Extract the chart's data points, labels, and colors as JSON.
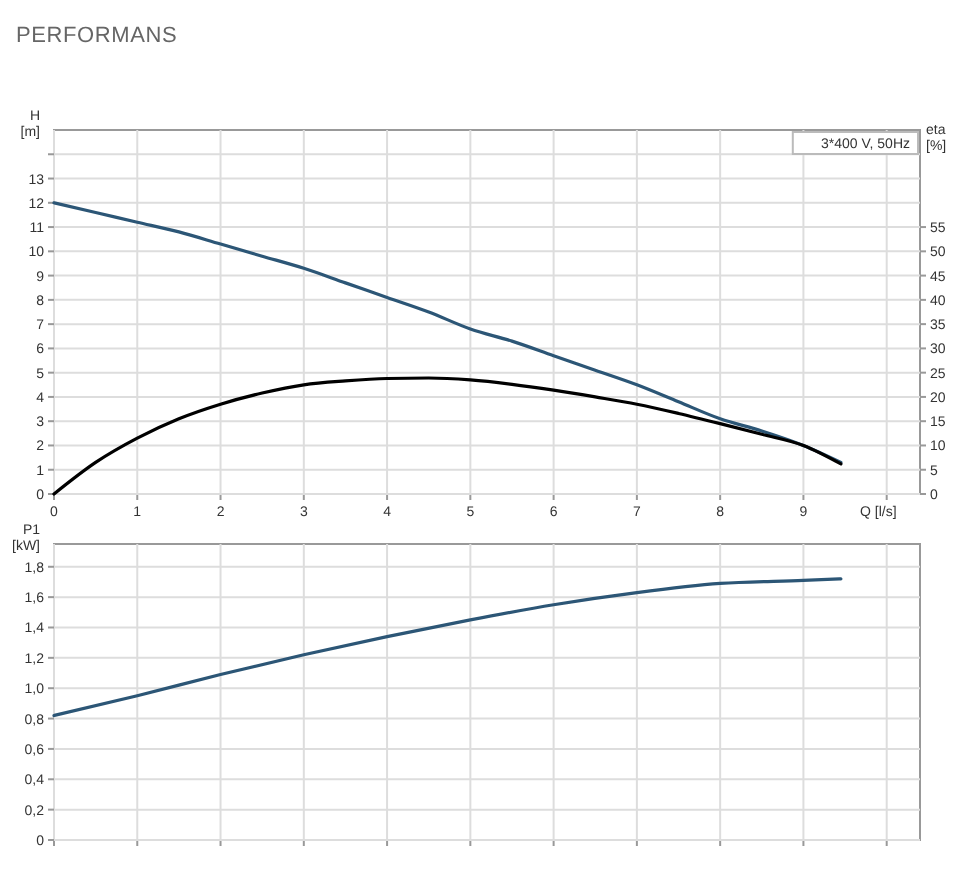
{
  "chart_data": [
    {
      "type": "line",
      "title": "PERFORMANS",
      "xlabel": "Q [l/s]",
      "ylabel": "H [m]",
      "y2label": "eta [%]",
      "annotations": [
        "3*400 V, 50Hz"
      ],
      "grid": true,
      "x": [
        0,
        0.5,
        1,
        1.5,
        2,
        2.5,
        3,
        3.5,
        4,
        4.5,
        5,
        5.5,
        6,
        6.5,
        7,
        7.5,
        8,
        8.5,
        9,
        9.45
      ],
      "series": [
        {
          "color": "#2c5676",
          "values": [
            12,
            11.6,
            11.2,
            10.8,
            10.3,
            9.8,
            9.3,
            8.7,
            8.1,
            7.5,
            6.8,
            6.3,
            5.7,
            5.1,
            4.5,
            3.8,
            3.1,
            2.6,
            2.0,
            1.3
          ]
        },
        {
          "color": "#000000",
          "axis": "y2",
          "values": [
            0,
            6.5,
            11.5,
            15.5,
            18.5,
            20.8,
            22.5,
            23.3,
            23.8,
            23.9,
            23.5,
            22.6,
            21.4,
            20,
            18.5,
            16.6,
            14.5,
            12.3,
            10,
            6.2
          ]
        }
      ],
      "xlim": [
        0,
        10.4
      ],
      "xticks": [
        0,
        1,
        2,
        3,
        4,
        5,
        6,
        7,
        8,
        9,
        {
          "value": 10,
          "label": null
        }
      ],
      "ylim": [
        0,
        15
      ],
      "yticks": [
        0,
        1,
        2,
        3,
        4,
        5,
        6,
        7,
        8,
        9,
        10,
        11,
        12,
        13,
        {
          "value": 14,
          "label": null
        }
      ],
      "y2lim": [
        0,
        75
      ],
      "y2ticks": [
        0,
        5,
        10,
        15,
        20,
        25,
        30,
        35,
        40,
        45,
        50,
        55
      ]
    },
    {
      "type": "line",
      "ylabel": "P1 [kW]",
      "grid": true,
      "tick_labels": "y",
      "x": [
        0,
        1,
        2,
        3,
        4,
        5,
        6,
        7,
        8,
        9,
        9.45
      ],
      "series": [
        {
          "color": "#2c5676",
          "values": [
            0.82,
            0.95,
            1.09,
            1.22,
            1.34,
            1.45,
            1.55,
            1.63,
            1.69,
            1.71,
            1.72
          ]
        }
      ],
      "xlim": [
        0,
        10.4
      ],
      "xticks": [
        0,
        1,
        2,
        3,
        4,
        5,
        6,
        7,
        8,
        9,
        10
      ],
      "ylim": [
        0,
        1.95
      ],
      "yticks": [
        0,
        {
          "value": 0.2,
          "label": "0,2"
        },
        {
          "value": 0.4,
          "label": "0,4"
        },
        {
          "value": 0.6,
          "label": "0,6"
        },
        {
          "value": 0.8,
          "label": "0,8"
        },
        {
          "value": 1.0,
          "label": "1,0"
        },
        {
          "value": 1.2,
          "label": "1,2"
        },
        {
          "value": 1.4,
          "label": "1,4"
        },
        {
          "value": 1.6,
          "label": "1,6"
        },
        {
          "value": 1.8,
          "label": "1,8"
        }
      ]
    }
  ]
}
